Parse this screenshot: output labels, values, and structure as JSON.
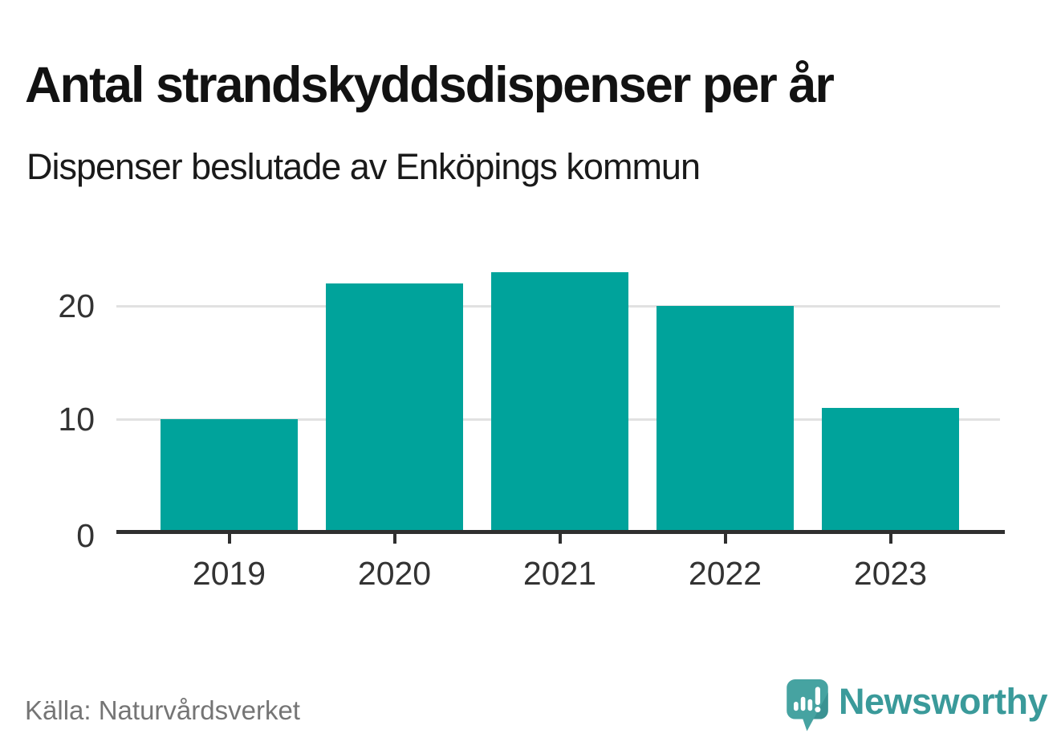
{
  "page": {
    "title": "Antal strandskyddsdispenser per år",
    "subtitle": "Dispenser beslutade av Enköpings kommun",
    "source": "Källa: Naturvårdsverket"
  },
  "branding": {
    "logo_text": "Newsworthy",
    "logo_icon": "speech-bubble-bar-chart-exclamation-icon",
    "logo_text_color": "#3a9a9a",
    "logo_bubble_color": "#46a3a1",
    "logo_bubble_shade_color": "#388f8f"
  },
  "chart_data": {
    "type": "bar",
    "title": "Antal strandskyddsdispenser per år",
    "subtitle": "Dispenser beslutade av Enköpings kommun",
    "categories": [
      "2019",
      "2020",
      "2021",
      "2022",
      "2023"
    ],
    "values": [
      10,
      22,
      23,
      20,
      11
    ],
    "xlabel": "",
    "ylabel": "",
    "yticks": [
      0,
      10,
      20
    ],
    "ylim": [
      0,
      23.6
    ],
    "grid": "horizontal-only",
    "legend": "none",
    "bar_color": "#00a39b",
    "axis_color": "#2f2f2f",
    "gridline_color": "#e1e1e1",
    "source": "Källa: Naturvårdsverket"
  }
}
